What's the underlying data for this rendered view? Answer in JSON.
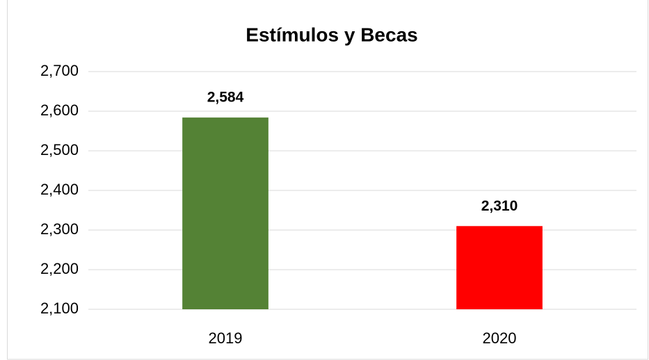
{
  "chart_data": {
    "type": "bar",
    "title": "Estímulos y Becas",
    "categories": [
      "2019",
      "2020"
    ],
    "values": [
      2584,
      2310
    ],
    "value_labels": [
      "2,584",
      "2,310"
    ],
    "colors": [
      "#548235",
      "#ff0000"
    ],
    "ylim": [
      2100,
      2700
    ],
    "yticks": [
      {
        "value": 2100,
        "label": "2,100"
      },
      {
        "value": 2200,
        "label": "2,200"
      },
      {
        "value": 2300,
        "label": "2,300"
      },
      {
        "value": 2400,
        "label": "2,400"
      },
      {
        "value": 2500,
        "label": "2,500"
      },
      {
        "value": 2600,
        "label": "2,600"
      },
      {
        "value": 2700,
        "label": "2,700"
      }
    ],
    "grid": true
  }
}
